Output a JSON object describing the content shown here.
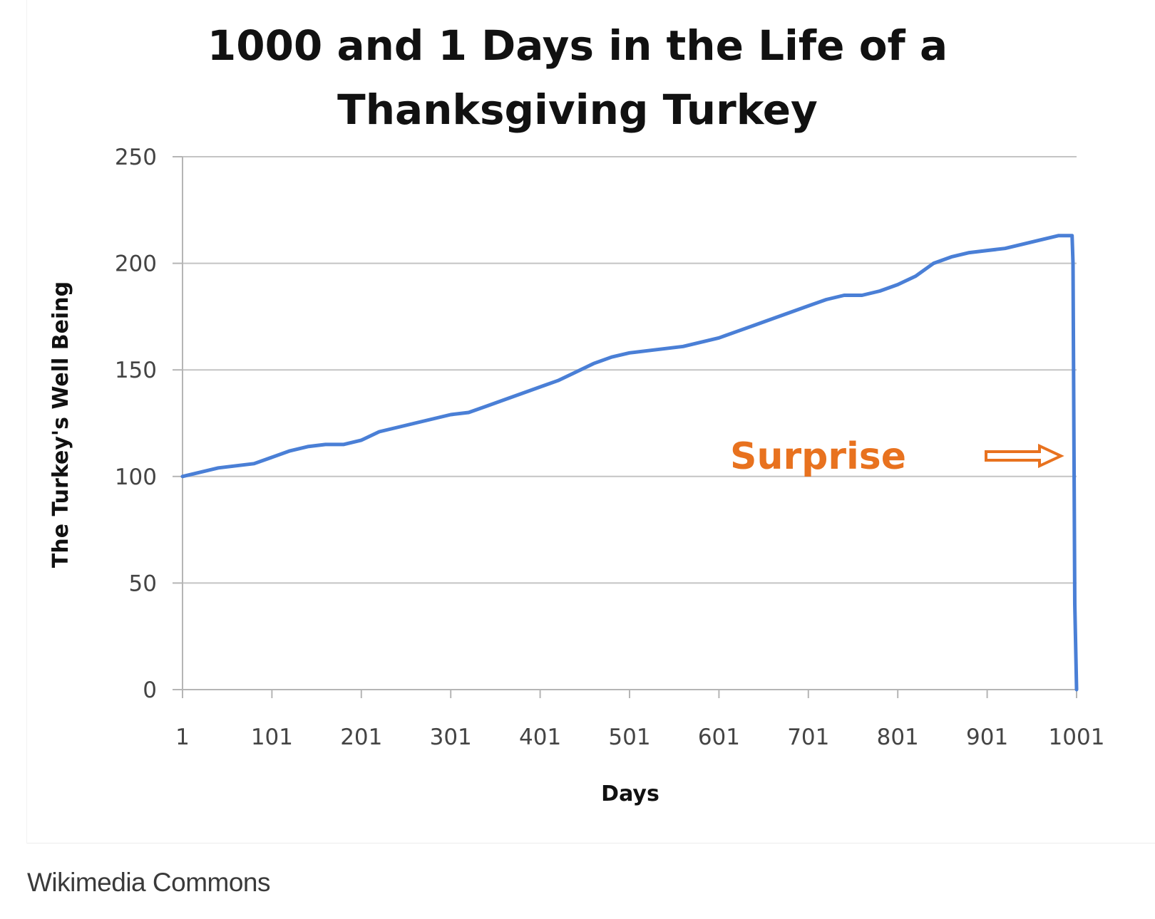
{
  "chart_data": {
    "type": "line",
    "title_lines": [
      "1000 and 1 Days in the Life of a",
      "Thanksgiving Turkey"
    ],
    "xlabel": "Days",
    "ylabel": "The Turkey's Well Being",
    "x_ticks": [
      "1",
      "101",
      "201",
      "301",
      "401",
      "501",
      "601",
      "701",
      "801",
      "901",
      "1001"
    ],
    "y_ticks": [
      "0",
      "50",
      "100",
      "150",
      "200",
      "250"
    ],
    "xlim": [
      1,
      1001
    ],
    "ylim": [
      0,
      250
    ],
    "grid": "horizontal",
    "series": [
      {
        "color": "#4a7fd6",
        "points": [
          [
            1,
            100
          ],
          [
            21,
            102
          ],
          [
            41,
            104
          ],
          [
            61,
            105
          ],
          [
            81,
            106
          ],
          [
            101,
            109
          ],
          [
            121,
            112
          ],
          [
            141,
            114
          ],
          [
            161,
            115
          ],
          [
            181,
            115
          ],
          [
            201,
            117
          ],
          [
            221,
            121
          ],
          [
            241,
            123
          ],
          [
            261,
            125
          ],
          [
            281,
            127
          ],
          [
            301,
            129
          ],
          [
            321,
            130
          ],
          [
            341,
            133
          ],
          [
            361,
            136
          ],
          [
            381,
            139
          ],
          [
            401,
            142
          ],
          [
            421,
            145
          ],
          [
            441,
            149
          ],
          [
            461,
            153
          ],
          [
            481,
            156
          ],
          [
            501,
            158
          ],
          [
            521,
            159
          ],
          [
            541,
            160
          ],
          [
            561,
            161
          ],
          [
            581,
            163
          ],
          [
            601,
            165
          ],
          [
            621,
            168
          ],
          [
            641,
            171
          ],
          [
            661,
            174
          ],
          [
            681,
            177
          ],
          [
            701,
            180
          ],
          [
            721,
            183
          ],
          [
            741,
            185
          ],
          [
            761,
            185
          ],
          [
            781,
            187
          ],
          [
            801,
            190
          ],
          [
            821,
            194
          ],
          [
            841,
            200
          ],
          [
            861,
            203
          ],
          [
            881,
            205
          ],
          [
            901,
            206
          ],
          [
            921,
            207
          ],
          [
            941,
            209
          ],
          [
            961,
            211
          ],
          [
            981,
            213
          ],
          [
            996,
            213
          ],
          [
            997,
            200
          ],
          [
            999,
            40
          ],
          [
            1001,
            0
          ]
        ]
      }
    ],
    "annotation": {
      "text": "Surprise",
      "color": "#e8721f",
      "arrow": "right"
    }
  },
  "caption": "Wikimedia Commons"
}
